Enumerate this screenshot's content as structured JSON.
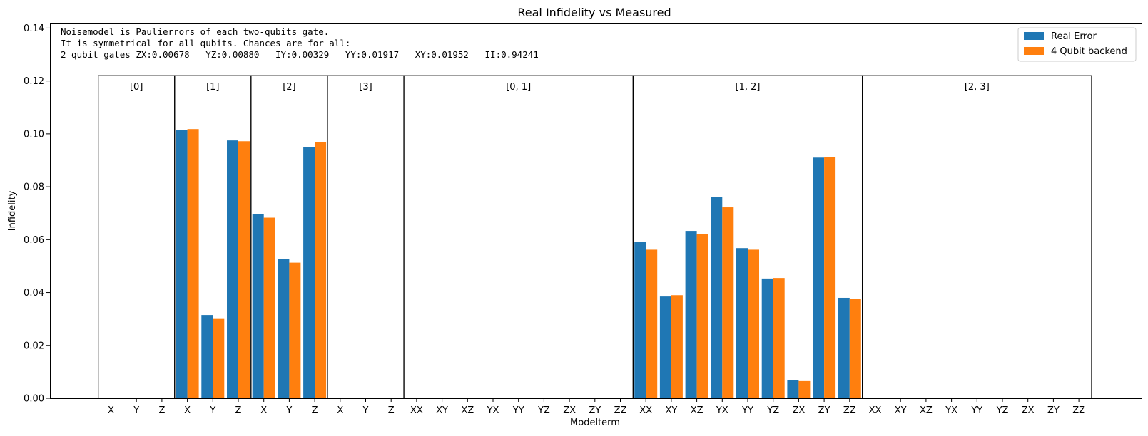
{
  "chart_data": {
    "type": "bar",
    "title": "Real Infidelity vs Measured",
    "xlabel": "Modelterm",
    "ylabel": "Infidelity",
    "ylim": [
      0,
      0.142
    ],
    "yticks": [
      "0.00",
      "0.02",
      "0.04",
      "0.06",
      "0.08",
      "0.10",
      "0.12",
      "0.14"
    ],
    "grid": false,
    "legend_placement": "top-right",
    "annotation_lines": [
      "Noisemodel is Paulierrors of each two-qubits gate.",
      "It is symmetrical for all qubits. Chances are for all:",
      "2 qubit gates ZX:0.00678   YZ:0.00880   IY:0.00329   YY:0.01917   XY:0.01952   II:0.94241"
    ],
    "groups": [
      {
        "label": "[0]",
        "terms": [
          "X",
          "Y",
          "Z"
        ]
      },
      {
        "label": "[1]",
        "terms": [
          "X",
          "Y",
          "Z"
        ]
      },
      {
        "label": "[2]",
        "terms": [
          "X",
          "Y",
          "Z"
        ]
      },
      {
        "label": "[3]",
        "terms": [
          "X",
          "Y",
          "Z"
        ]
      },
      {
        "label": "[0, 1]",
        "terms": [
          "XX",
          "XY",
          "XZ",
          "YX",
          "YY",
          "YZ",
          "ZX",
          "ZY",
          "ZZ"
        ]
      },
      {
        "label": "[1, 2]",
        "terms": [
          "XX",
          "XY",
          "XZ",
          "YX",
          "YY",
          "YZ",
          "ZX",
          "ZY",
          "ZZ"
        ]
      },
      {
        "label": "[2, 3]",
        "terms": [
          "XX",
          "XY",
          "XZ",
          "YX",
          "YY",
          "YZ",
          "ZX",
          "ZY",
          "ZZ"
        ]
      }
    ],
    "group_box_top": 0.122,
    "series": [
      {
        "name": "Real Error",
        "color": "#1f77b4",
        "values": [
          0,
          0,
          0,
          0.1015,
          0.0315,
          0.0975,
          0.0697,
          0.0528,
          0.095,
          0,
          0,
          0,
          0,
          0,
          0,
          0,
          0,
          0,
          0,
          0,
          0,
          0.0592,
          0.0385,
          0.0633,
          0.0762,
          0.0568,
          0.0453,
          0.0068,
          0.091,
          0.038,
          0,
          0,
          0,
          0,
          0,
          0,
          0,
          0,
          0
        ]
      },
      {
        "name": "4 Qubit backend",
        "color": "#ff7f0e",
        "values": [
          0,
          0,
          0,
          0.1018,
          0.03,
          0.0972,
          0.0683,
          0.0513,
          0.097,
          0,
          0,
          0,
          0,
          0,
          0,
          0,
          0,
          0,
          0,
          0,
          0,
          0.0562,
          0.039,
          0.0622,
          0.0722,
          0.0562,
          0.0455,
          0.0065,
          0.0913,
          0.0377,
          0,
          0,
          0,
          0,
          0,
          0,
          0,
          0,
          0
        ]
      }
    ]
  }
}
